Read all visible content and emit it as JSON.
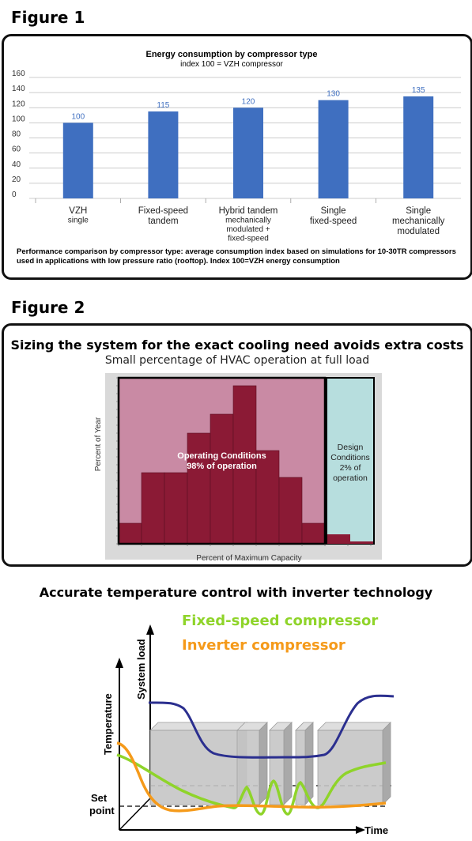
{
  "figure1": {
    "label": "Figure 1",
    "chart_data": {
      "type": "bar",
      "title": "Energy consumption by compressor type",
      "subtitle": "index 100 = VZH compressor",
      "categories": [
        [
          "VZH",
          "single"
        ],
        [
          "Fixed-speed",
          "tandem"
        ],
        [
          "Hybrid tandem",
          "mechanically",
          "modulated +",
          "fixed-speed"
        ],
        [
          "Single",
          "fixed-speed"
        ],
        [
          "Single",
          "mechanically",
          "modulated"
        ]
      ],
      "values": [
        100,
        115,
        120,
        130,
        135
      ],
      "ylim": [
        0,
        160
      ],
      "yticks": [
        0,
        20,
        40,
        60,
        80,
        100,
        120,
        140,
        160
      ],
      "bar_color": "#3f6fc0",
      "value_label_color": "#3f6fc0"
    },
    "note_line1": "Performance comparison by compressor type: average consumption index based on simulations for 10-30TR compressors",
    "note_line2": "used in applications with low pressure ratio (rooftop). Index 100=VZH energy consumption"
  },
  "figure2": {
    "label": "Figure 2",
    "title": "Sizing the system for the exact cooling need avoids extra costs",
    "subtitle": "Small percentage of HVAC operation at full load",
    "chart_data": {
      "type": "bar",
      "ylabel": "Percent of Year",
      "xlabel": "Percent of Maximum Capacity",
      "operating_values": [
        2.6,
        9.0,
        9.0,
        14.0,
        16.4,
        20.0,
        11.8,
        8.4,
        2.6
      ],
      "design_values": [
        1.2,
        0.3
      ],
      "ylim": [
        0,
        21
      ],
      "operating_label_line1": "Operating Conditions",
      "operating_label_line2": "98% of operation",
      "design_label_line1": "Design",
      "design_label_line2": "Conditions",
      "design_label_line3": "2% of",
      "design_label_line4": "operation",
      "dark_color": "#8b1a35",
      "light_color": "#c98aa4",
      "design_bg_color": "#b7dede"
    }
  },
  "figure3": {
    "title": "Accurate temperature control with inverter technology",
    "chart_data": {
      "type": "line",
      "legend_fixed": "Fixed-speed compressor",
      "legend_inverter": "Inverter compressor",
      "label_system_load": "System load",
      "label_temperature": "Temperature",
      "label_set_point_line1": "Set",
      "label_set_point_line2": "point",
      "label_time": "Time",
      "fixed_color": "#8fd42a",
      "inverter_color": "#f59a1a",
      "load_color": "#2b2f8f"
    }
  }
}
